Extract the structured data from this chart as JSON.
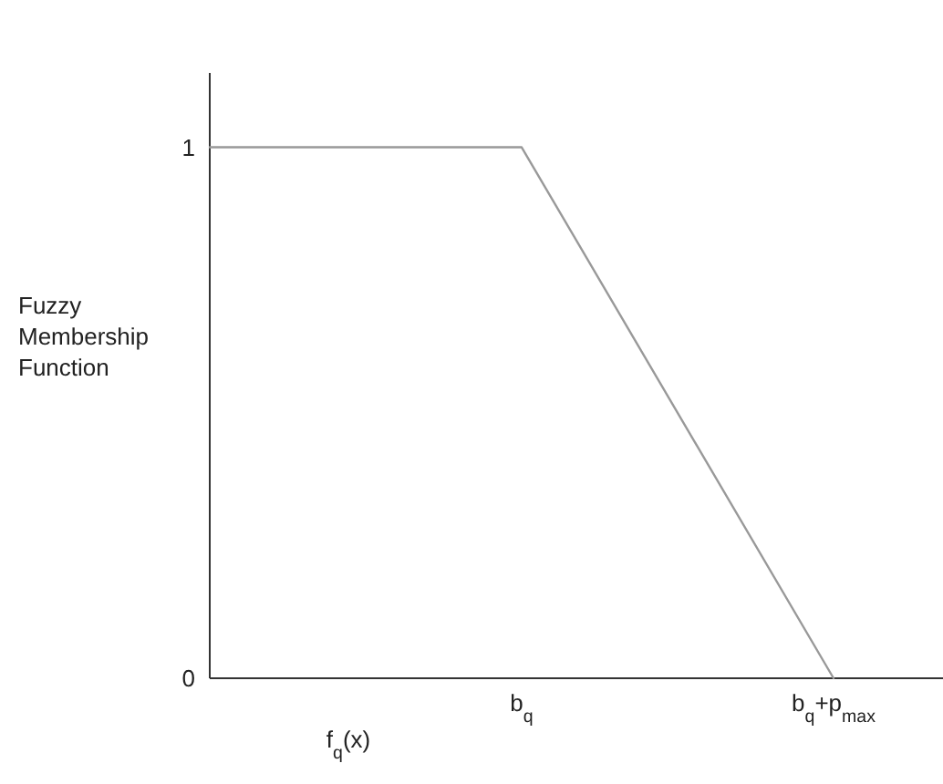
{
  "chart_data": {
    "type": "line",
    "xlabel": "f$_{q}$(x)",
    "ylabel": "Fuzzy Membership Function",
    "categories": [
      null,
      "b$_{q}$",
      "b$_{q}$+p$_{max}$"
    ],
    "series": [
      {
        "color": "#999999",
        "values": [
          1,
          1,
          0
        ]
      }
    ],
    "ylim": [
      0,
      1.14
    ],
    "yticks": [
      0,
      1
    ],
    "grid": false,
    "marker": "none",
    "line_style": "solid"
  }
}
